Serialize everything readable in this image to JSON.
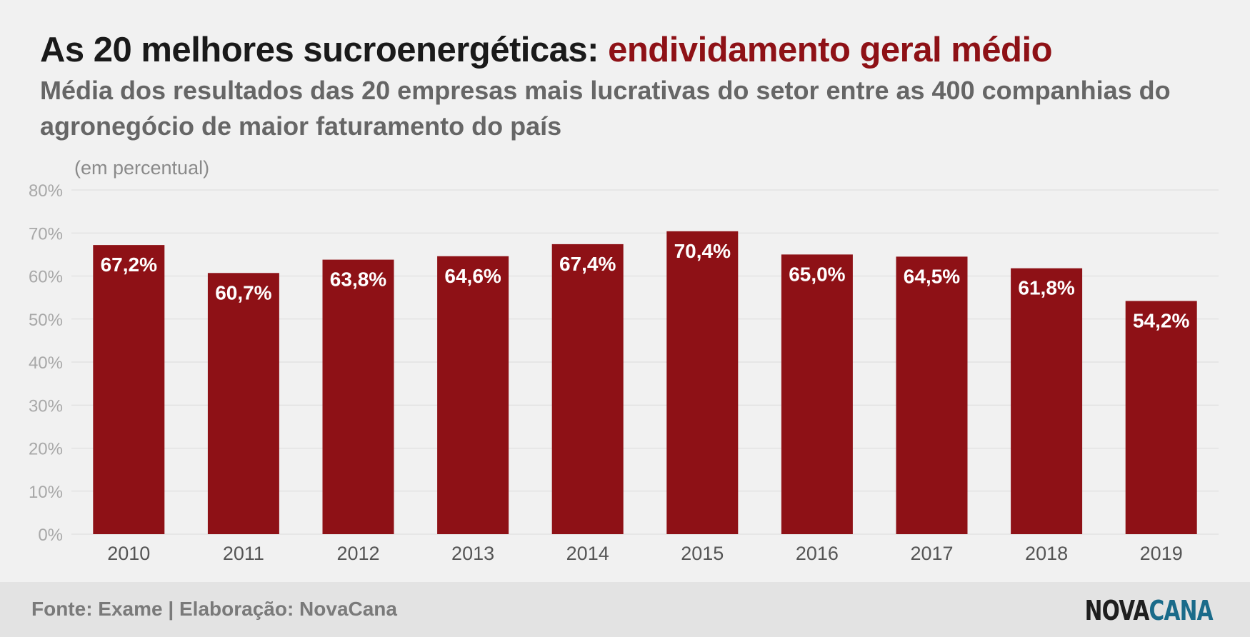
{
  "header": {
    "title_main": "As 20 melhores sucroenergéticas: ",
    "title_highlight": "endividamento geral médio",
    "subtitle": "Média dos resultados das 20 empresas mais lucrativas do setor entre as 400 companhias do agronegócio de maior faturamento do país"
  },
  "footer": {
    "source": "Fonte: Exame | Elaboração: NovaCana",
    "logo_part1": "NOVA",
    "logo_part2": "CANA"
  },
  "colors": {
    "bar": "#8e1116",
    "highlight": "#8e1116",
    "logo_accent": "#1a6b8a"
  },
  "chart_data": {
    "type": "bar",
    "unit_note": "(em percentual)",
    "categories": [
      "2010",
      "2011",
      "2012",
      "2013",
      "2014",
      "2015",
      "2016",
      "2017",
      "2018",
      "2019"
    ],
    "values": [
      67.2,
      60.7,
      63.8,
      64.6,
      67.4,
      70.4,
      65.0,
      64.5,
      61.8,
      54.2
    ],
    "data_labels": [
      "67,2%",
      "60,7%",
      "63,8%",
      "64,6%",
      "67,4%",
      "70,4%",
      "65,0%",
      "64,5%",
      "61,8%",
      "54,2%"
    ],
    "ylim": [
      0,
      80
    ],
    "yticks": [
      0,
      10,
      20,
      30,
      40,
      50,
      60,
      70,
      80
    ],
    "ytick_labels": [
      "0%",
      "10%",
      "20%",
      "30%",
      "40%",
      "50%",
      "60%",
      "70%",
      "80%"
    ],
    "grid": true,
    "legend": "none"
  }
}
